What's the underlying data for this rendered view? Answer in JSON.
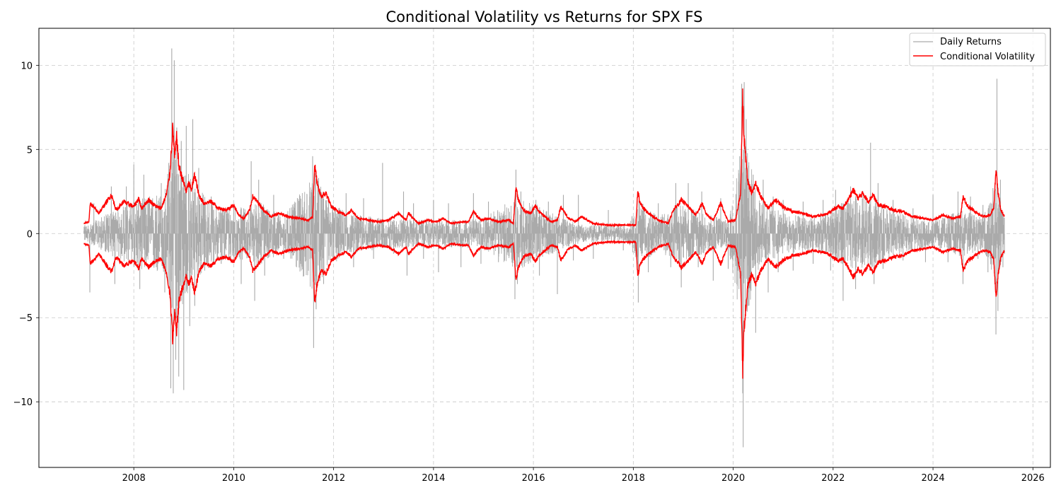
{
  "chart_data": {
    "type": "line",
    "title": "Conditional Volatility vs Returns for SPX FS",
    "xlabel": "",
    "ylabel": "",
    "xlim": [
      2006.1,
      2026.35
    ],
    "ylim": [
      -13.9,
      12.2
    ],
    "x_ticks": [
      2008,
      2010,
      2012,
      2014,
      2016,
      2018,
      2020,
      2022,
      2024,
      2026
    ],
    "x_tick_labels": [
      "2008",
      "2010",
      "2012",
      "2014",
      "2016",
      "2018",
      "2020",
      "2022",
      "2024",
      "2026"
    ],
    "y_ticks": [
      10,
      5,
      0,
      -5,
      -10
    ],
    "y_tick_labels": [
      "10",
      "5",
      "0",
      "−5",
      "−10"
    ],
    "grid": true,
    "legend_position": "top-right",
    "series": [
      {
        "name": "Daily Returns",
        "color": "#aaaaaa",
        "style": "vertical spikes around zero (daily)",
        "x": [
          2007.02,
          2007.12,
          2007.2,
          2007.55,
          2007.62,
          2007.85,
          2008.0,
          2008.12,
          2008.2,
          2008.3,
          2008.45,
          2008.55,
          2008.62,
          2008.7,
          2008.74,
          2008.76,
          2008.79,
          2008.81,
          2008.84,
          2008.86,
          2008.9,
          2008.95,
          2009.0,
          2009.05,
          2009.12,
          2009.18,
          2009.22,
          2009.3,
          2009.42,
          2009.55,
          2009.75,
          2010.0,
          2010.15,
          2010.35,
          2010.42,
          2010.5,
          2010.62,
          2010.8,
          2011.0,
          2011.2,
          2011.4,
          2011.58,
          2011.6,
          2011.63,
          2011.65,
          2011.7,
          2011.8,
          2011.9,
          2012.0,
          2012.25,
          2012.4,
          2012.6,
          2012.8,
          2012.98,
          2013.2,
          2013.4,
          2013.47,
          2013.6,
          2013.8,
          2014.0,
          2014.1,
          2014.3,
          2014.55,
          2014.8,
          2014.95,
          2015.1,
          2015.3,
          2015.5,
          2015.63,
          2015.65,
          2015.68,
          2015.75,
          2015.9,
          2016.05,
          2016.12,
          2016.3,
          2016.48,
          2016.6,
          2016.8,
          2016.9,
          2017.2,
          2017.5,
          2017.8,
          2018.0,
          2018.1,
          2018.12,
          2018.3,
          2018.5,
          2018.75,
          2018.85,
          2018.96,
          2019.1,
          2019.3,
          2019.37,
          2019.6,
          2019.75,
          2019.9,
          2020.05,
          2020.13,
          2020.17,
          2020.19,
          2020.2,
          2020.22,
          2020.24,
          2020.26,
          2020.3,
          2020.4,
          2020.45,
          2020.6,
          2020.7,
          2020.8,
          2020.9,
          2021.0,
          2021.2,
          2021.4,
          2021.6,
          2021.8,
          2021.95,
          2022.05,
          2022.2,
          2022.35,
          2022.45,
          2022.6,
          2022.75,
          2022.82,
          2022.9,
          2023.0,
          2023.2,
          2023.4,
          2023.6,
          2023.85,
          2024.0,
          2024.3,
          2024.5,
          2024.6,
          2024.75,
          2024.9,
          2025.0,
          2025.1,
          2025.2,
          2025.26,
          2025.28,
          2025.3,
          2025.35,
          2025.4,
          2025.43
        ],
        "y": [
          0.5,
          -3.5,
          1.8,
          2.8,
          -3.0,
          2.8,
          4.1,
          -3.3,
          3.5,
          2.0,
          -2.0,
          3.0,
          -3.5,
          4.2,
          -9.2,
          11.0,
          -9.5,
          10.3,
          -7.5,
          6.3,
          -8.5,
          5.5,
          -9.3,
          6.4,
          -5.5,
          6.8,
          -4.3,
          3.9,
          -2.2,
          2.2,
          -1.8,
          1.6,
          -3.0,
          4.3,
          -4.0,
          3.2,
          -2.5,
          2.3,
          -1.5,
          1.6,
          -2.0,
          4.6,
          -6.8,
          3.6,
          -4.5,
          3.3,
          -3.0,
          2.2,
          -1.6,
          2.4,
          -2.0,
          2.1,
          -1.5,
          4.2,
          -1.2,
          2.5,
          -2.5,
          1.8,
          -1.5,
          2.0,
          -2.3,
          1.8,
          -2.0,
          2.4,
          -1.8,
          1.9,
          -1.7,
          1.5,
          -3.9,
          3.8,
          -3.0,
          2.5,
          -1.8,
          2.0,
          -2.5,
          1.9,
          -3.6,
          2.3,
          -1.6,
          2.3,
          -1.5,
          1.4,
          -1.0,
          0.9,
          -4.1,
          2.0,
          -2.3,
          1.8,
          -2.0,
          3.0,
          -3.2,
          3.0,
          -2.0,
          2.5,
          -2.8,
          2.1,
          -2.1,
          1.2,
          4.6,
          8.9,
          -9.5,
          -12.7,
          9.0,
          -5.0,
          6.8,
          -4.3,
          3.5,
          -5.9,
          3.2,
          -3.5,
          2.2,
          -2.3,
          2.0,
          -2.2,
          1.9,
          -1.8,
          2.0,
          -2.2,
          2.6,
          -4.0,
          2.8,
          -3.3,
          2.5,
          5.4,
          -3.0,
          3.0,
          -2.1,
          2.0,
          -1.6,
          1.5,
          -1.7,
          2.3,
          -1.7,
          2.5,
          -3.0,
          2.2,
          -1.5,
          1.7,
          -2.3,
          2.7,
          -6.0,
          9.2,
          -4.6,
          3.2,
          -2.0,
          -1.2
        ],
        "base_amplitude": [
          [
            2007.0,
            0.4
          ],
          [
            2007.6,
            1.4
          ],
          [
            2008.0,
            2.0
          ],
          [
            2008.6,
            2.5
          ],
          [
            2008.8,
            5.5
          ],
          [
            2009.2,
            3.0
          ],
          [
            2009.6,
            1.8
          ],
          [
            2010.3,
            1.5
          ],
          [
            2010.5,
            2.0
          ],
          [
            2011.0,
            1.0
          ],
          [
            2011.6,
            3.5
          ],
          [
            2011.9,
            2.0
          ],
          [
            2012.3,
            1.2
          ],
          [
            2013.0,
            0.9
          ],
          [
            2014.0,
            0.8
          ],
          [
            2015.0,
            0.9
          ],
          [
            2015.65,
            2.2
          ],
          [
            2016.1,
            1.7
          ],
          [
            2016.5,
            1.0
          ],
          [
            2017.0,
            0.5
          ],
          [
            2017.9,
            0.5
          ],
          [
            2018.1,
            2.0
          ],
          [
            2018.5,
            1.0
          ],
          [
            2018.9,
            1.8
          ],
          [
            2019.5,
            1.1
          ],
          [
            2019.9,
            0.9
          ],
          [
            2020.2,
            6.0
          ],
          [
            2020.5,
            2.2
          ],
          [
            2021.0,
            1.2
          ],
          [
            2021.7,
            1.0
          ],
          [
            2022.0,
            1.5
          ],
          [
            2022.4,
            2.3
          ],
          [
            2022.8,
            2.0
          ],
          [
            2023.3,
            1.2
          ],
          [
            2024.0,
            0.8
          ],
          [
            2024.6,
            1.4
          ],
          [
            2025.0,
            1.0
          ],
          [
            2025.27,
            3.0
          ],
          [
            2025.43,
            1.0
          ]
        ]
      },
      {
        "name": "Conditional Volatility",
        "color": "#ff0000",
        "style": "symmetric envelope (± sigma)",
        "x": [
          2007.0,
          2007.1,
          2007.13,
          2007.3,
          2007.55,
          2007.65,
          2007.8,
          2008.0,
          2008.1,
          2008.15,
          2008.3,
          2008.45,
          2008.55,
          2008.65,
          2008.72,
          2008.78,
          2008.82,
          2008.86,
          2008.9,
          2008.95,
          2009.05,
          2009.1,
          2009.15,
          2009.22,
          2009.3,
          2009.4,
          2009.55,
          2009.7,
          2009.85,
          2010.0,
          2010.1,
          2010.2,
          2010.32,
          2010.38,
          2010.5,
          2010.6,
          2010.75,
          2010.9,
          2011.1,
          2011.3,
          2011.5,
          2011.58,
          2011.62,
          2011.68,
          2011.75,
          2011.85,
          2011.95,
          2012.1,
          2012.25,
          2012.35,
          2012.5,
          2012.7,
          2012.9,
          2013.1,
          2013.3,
          2013.45,
          2013.5,
          2013.7,
          2013.9,
          2014.05,
          2014.2,
          2014.35,
          2014.55,
          2014.7,
          2014.8,
          2014.95,
          2015.1,
          2015.3,
          2015.5,
          2015.6,
          2015.65,
          2015.7,
          2015.8,
          2015.95,
          2016.05,
          2016.1,
          2016.2,
          2016.35,
          2016.48,
          2016.55,
          2016.7,
          2016.85,
          2016.95,
          2017.2,
          2017.5,
          2017.8,
          2018.05,
          2018.09,
          2018.12,
          2018.2,
          2018.35,
          2018.5,
          2018.7,
          2018.8,
          2018.97,
          2019.1,
          2019.25,
          2019.38,
          2019.45,
          2019.6,
          2019.75,
          2019.9,
          2020.05,
          2020.15,
          2020.19,
          2020.21,
          2020.25,
          2020.3,
          2020.38,
          2020.45,
          2020.55,
          2020.7,
          2020.85,
          2021.0,
          2021.2,
          2021.4,
          2021.6,
          2021.8,
          2021.95,
          2022.1,
          2022.2,
          2022.3,
          2022.4,
          2022.5,
          2022.6,
          2022.7,
          2022.8,
          2022.9,
          2023.05,
          2023.2,
          2023.4,
          2023.6,
          2023.8,
          2024.0,
          2024.2,
          2024.4,
          2024.55,
          2024.6,
          2024.7,
          2024.85,
          2025.0,
          2025.15,
          2025.22,
          2025.26,
          2025.3,
          2025.35,
          2025.43
        ],
        "y": [
          0.6,
          0.7,
          1.8,
          1.2,
          2.3,
          1.4,
          1.9,
          1.6,
          2.1,
          1.5,
          2.0,
          1.6,
          1.5,
          2.3,
          3.5,
          6.3,
          4.5,
          5.8,
          4.0,
          3.5,
          2.5,
          3.0,
          2.6,
          3.5,
          2.3,
          1.8,
          1.9,
          1.5,
          1.4,
          1.7,
          1.1,
          0.9,
          1.4,
          2.2,
          1.8,
          1.4,
          1.0,
          1.2,
          1.0,
          0.9,
          0.8,
          1.0,
          4.1,
          2.8,
          2.2,
          2.4,
          1.6,
          1.3,
          1.1,
          1.4,
          0.9,
          0.8,
          0.7,
          0.8,
          1.2,
          0.8,
          1.2,
          0.6,
          0.8,
          0.7,
          0.9,
          0.6,
          0.7,
          0.7,
          1.3,
          0.8,
          0.9,
          0.7,
          0.8,
          0.6,
          2.7,
          2.0,
          1.4,
          1.2,
          1.7,
          1.3,
          1.1,
          0.7,
          0.8,
          1.6,
          0.9,
          0.7,
          1.0,
          0.6,
          0.5,
          0.5,
          0.5,
          2.6,
          2.0,
          1.5,
          1.1,
          0.8,
          0.6,
          1.4,
          2.0,
          1.6,
          1.1,
          1.8,
          1.2,
          0.8,
          1.8,
          0.7,
          0.8,
          2.5,
          8.2,
          6.0,
          4.5,
          3.0,
          2.4,
          3.0,
          2.2,
          1.5,
          2.0,
          1.6,
          1.3,
          1.2,
          1.0,
          1.1,
          1.3,
          1.6,
          1.5,
          2.0,
          2.6,
          2.1,
          2.4,
          1.9,
          2.3,
          1.7,
          1.6,
          1.4,
          1.3,
          1.0,
          0.9,
          0.8,
          1.1,
          0.9,
          1.0,
          2.2,
          1.6,
          1.3,
          1.0,
          1.1,
          1.6,
          3.9,
          2.5,
          1.5,
          1.0
        ]
      }
    ]
  }
}
